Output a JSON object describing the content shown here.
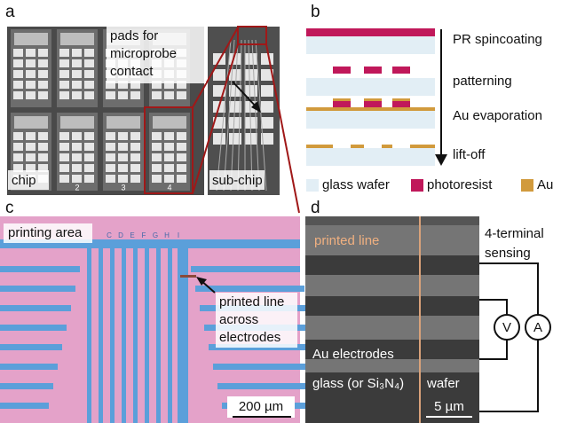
{
  "panels": {
    "a": {
      "label": "a",
      "callout": [
        "pads for",
        "microprobe",
        "contact"
      ],
      "chip_label": "chip",
      "subchip_label": "sub-chip",
      "chip_numbers": [
        "2",
        "3",
        "4"
      ]
    },
    "b": {
      "label": "b",
      "steps": [
        "PR spincoating",
        "patterning",
        "Au evaporation",
        "lift-off"
      ],
      "legend": [
        "glass wafer",
        "photoresist",
        "Au"
      ]
    },
    "c": {
      "label": "c",
      "area_label": "printing area",
      "electrode_letters": [
        "C",
        "D",
        "E",
        "F",
        "G",
        "H",
        "I"
      ],
      "callout": [
        "printed line",
        "across",
        "electrodes"
      ],
      "scale_bar": "200 µm"
    },
    "d": {
      "label": "d",
      "line_label": "printed line",
      "sensing": [
        "4-terminal",
        "sensing"
      ],
      "voltmeter": "V",
      "ammeter": "A",
      "electrodes_label": "Au electrodes",
      "substrate_label": "glass (or Si₃N₄)",
      "wafer_label": "wafer",
      "scale_bar": "5 µm"
    }
  }
}
